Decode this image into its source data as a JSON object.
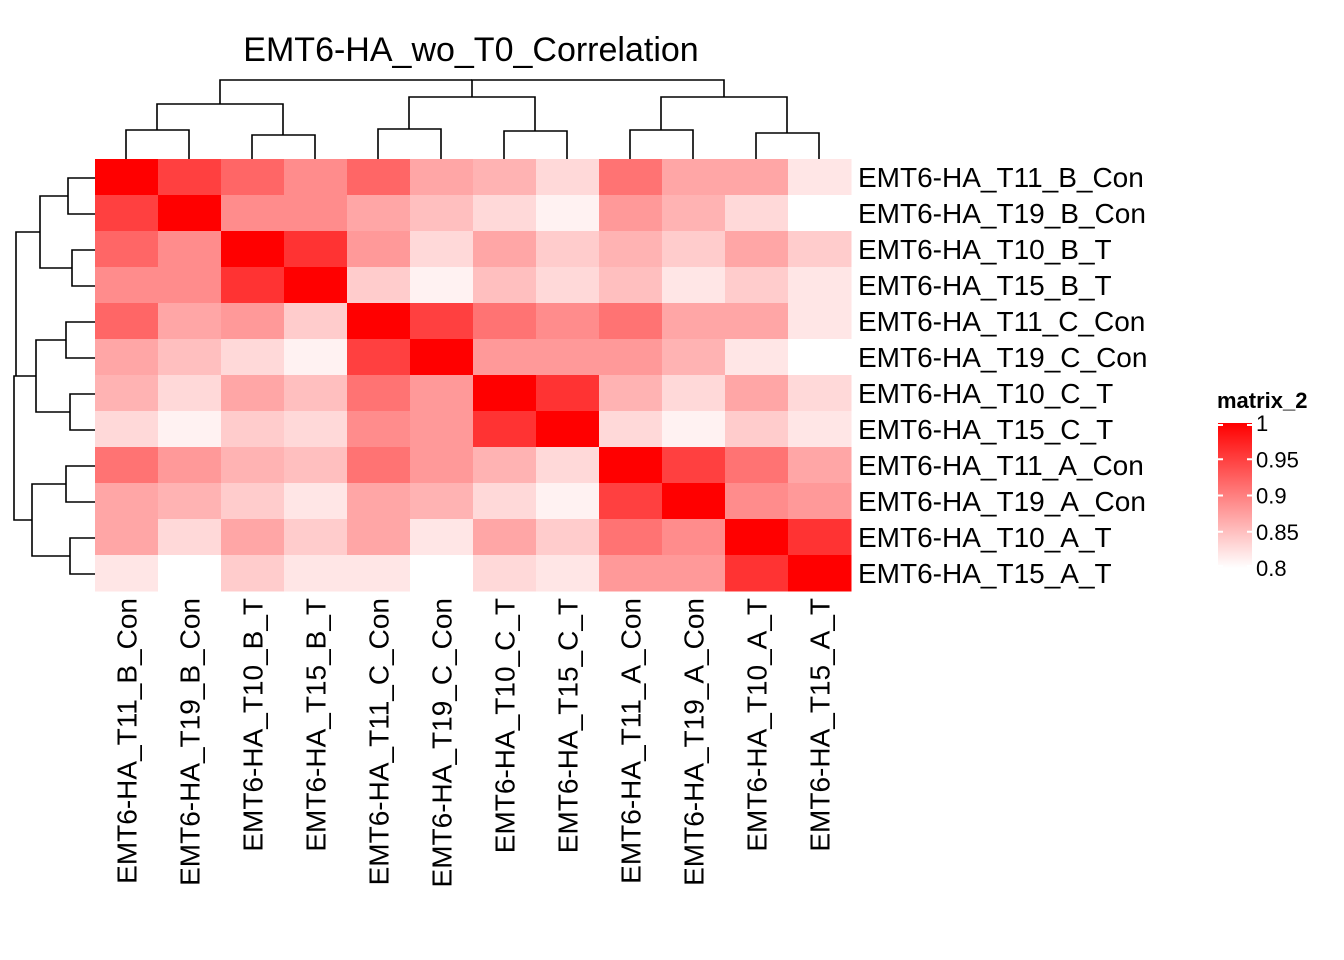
{
  "chart_data": {
    "type": "heatmap",
    "title": "EMT6-HA_wo_T0_Correlation",
    "rows": [
      "EMT6-HA_T11_B_Con",
      "EMT6-HA_T19_B_Con",
      "EMT6-HA_T10_B_T",
      "EMT6-HA_T15_B_T",
      "EMT6-HA_T11_C_Con",
      "EMT6-HA_T19_C_Con",
      "EMT6-HA_T10_C_T",
      "EMT6-HA_T15_C_T",
      "EMT6-HA_T11_A_Con",
      "EMT6-HA_T19_A_Con",
      "EMT6-HA_T10_A_T",
      "EMT6-HA_T15_A_T"
    ],
    "columns": [
      "EMT6-HA_T11_B_Con",
      "EMT6-HA_T19_B_Con",
      "EMT6-HA_T10_B_T",
      "EMT6-HA_T15_B_T",
      "EMT6-HA_T11_C_Con",
      "EMT6-HA_T19_C_Con",
      "EMT6-HA_T10_C_T",
      "EMT6-HA_T15_C_T",
      "EMT6-HA_T11_A_Con",
      "EMT6-HA_T19_A_Con",
      "EMT6-HA_T10_A_T",
      "EMT6-HA_T15_A_T"
    ],
    "values": [
      [
        1.0,
        0.95,
        0.92,
        0.89,
        0.92,
        0.87,
        0.86,
        0.83,
        0.91,
        0.87,
        0.87,
        0.82
      ],
      [
        0.95,
        1.0,
        0.89,
        0.89,
        0.87,
        0.85,
        0.83,
        0.81,
        0.88,
        0.86,
        0.83,
        0.8
      ],
      [
        0.92,
        0.89,
        1.0,
        0.96,
        0.88,
        0.83,
        0.87,
        0.84,
        0.86,
        0.84,
        0.87,
        0.84
      ],
      [
        0.89,
        0.89,
        0.96,
        1.0,
        0.84,
        0.81,
        0.85,
        0.83,
        0.85,
        0.82,
        0.84,
        0.82
      ],
      [
        0.92,
        0.87,
        0.88,
        0.84,
        1.0,
        0.95,
        0.91,
        0.89,
        0.91,
        0.87,
        0.87,
        0.82
      ],
      [
        0.87,
        0.85,
        0.83,
        0.81,
        0.95,
        1.0,
        0.88,
        0.88,
        0.88,
        0.86,
        0.82,
        0.8
      ],
      [
        0.86,
        0.83,
        0.87,
        0.85,
        0.91,
        0.88,
        1.0,
        0.96,
        0.86,
        0.83,
        0.87,
        0.83
      ],
      [
        0.83,
        0.81,
        0.84,
        0.83,
        0.89,
        0.88,
        0.96,
        1.0,
        0.83,
        0.81,
        0.84,
        0.82
      ],
      [
        0.91,
        0.88,
        0.86,
        0.85,
        0.91,
        0.88,
        0.86,
        0.83,
        1.0,
        0.95,
        0.91,
        0.87
      ],
      [
        0.87,
        0.86,
        0.84,
        0.82,
        0.87,
        0.86,
        0.83,
        0.81,
        0.95,
        1.0,
        0.89,
        0.88
      ],
      [
        0.87,
        0.83,
        0.87,
        0.84,
        0.87,
        0.82,
        0.87,
        0.84,
        0.91,
        0.89,
        1.0,
        0.96
      ],
      [
        0.82,
        0.8,
        0.84,
        0.82,
        0.82,
        0.8,
        0.83,
        0.82,
        0.88,
        0.88,
        0.96,
        1.0
      ]
    ],
    "color_scale": {
      "min": 0.8,
      "max": 1.0,
      "low_color": "#ffffff",
      "high_color": "#ff0000"
    },
    "legend": {
      "title": "matrix_2",
      "ticks": [
        "1",
        "0.95",
        "0.9",
        "0.85",
        "0.8"
      ],
      "tick_values": [
        1.0,
        0.95,
        0.9,
        0.85,
        0.8
      ],
      "placement": "right"
    },
    "row_dendrogram": "left",
    "column_dendrogram": "top"
  }
}
